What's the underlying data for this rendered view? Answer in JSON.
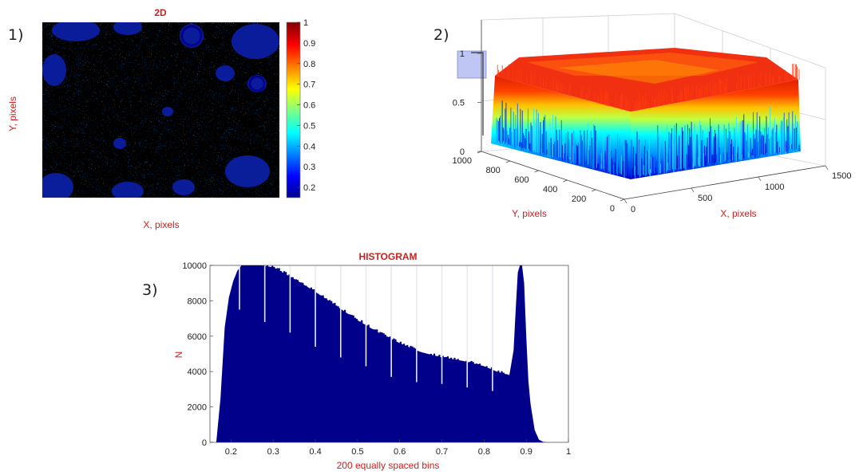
{
  "panels": {
    "p1": "1)",
    "p2": "2)",
    "p3": "3)"
  },
  "colors": {
    "navy": "#00008b",
    "label_red": "#cc1f1f"
  },
  "chart_data": [
    {
      "type": "heatmap",
      "title": "2D",
      "xlabel": "X, pixels",
      "ylabel": "Y, pixels",
      "colormap": "jet",
      "colorbar": {
        "range": [
          0.15,
          1.0
        ],
        "ticks": [
          "1",
          "0.9",
          "0.8",
          "0.7",
          "0.6",
          "0.5",
          "0.4",
          "0.3",
          "0.2"
        ]
      },
      "grid": false
    },
    {
      "type": "surface",
      "title": "",
      "xlabel": "X, pixels",
      "ylabel": "Y, pixels",
      "x_ticks": [
        "0",
        "500",
        "1000",
        "1500"
      ],
      "y_ticks": [
        "0",
        "200",
        "400",
        "600",
        "800",
        "1000"
      ],
      "z_ticks": [
        "0",
        "0.5",
        "1"
      ],
      "xlim": [
        0,
        1500
      ],
      "ylim": [
        0,
        1000
      ],
      "zlim": [
        0,
        1
      ],
      "colormap": "jet",
      "grid": true
    },
    {
      "type": "bar",
      "title": "HISTOGRAM",
      "xlabel": "200 equally spaced bins",
      "ylabel": "N",
      "xlim": [
        0.15,
        1.0
      ],
      "ylim": [
        0,
        10000
      ],
      "x_ticks": [
        "0.2",
        "0.3",
        "0.4",
        "0.5",
        "0.6",
        "0.7",
        "0.8",
        "0.9",
        "1"
      ],
      "y_ticks": [
        "0",
        "2000",
        "4000",
        "6000",
        "8000",
        "10000"
      ],
      "bar_color": "#00008b",
      "profile_x": [
        0.165,
        0.175,
        0.185,
        0.195,
        0.205,
        0.215,
        0.225,
        0.25,
        0.27,
        0.3,
        0.33,
        0.36,
        0.4,
        0.45,
        0.5,
        0.55,
        0.6,
        0.65,
        0.7,
        0.75,
        0.8,
        0.83,
        0.86,
        0.87,
        0.875,
        0.88,
        0.885,
        0.89,
        0.895,
        0.9,
        0.905,
        0.91,
        0.92,
        0.93,
        0.94,
        0.95
      ],
      "profile_y": [
        0,
        2500,
        6500,
        8200,
        9100,
        9700,
        10000,
        10000,
        10000,
        9900,
        9500,
        9100,
        8500,
        7700,
        6900,
        6200,
        5600,
        5100,
        4800,
        4600,
        4300,
        4000,
        3800,
        5200,
        7500,
        9600,
        10000,
        10000,
        9000,
        6000,
        3500,
        2200,
        700,
        150,
        30,
        0
      ],
      "gap_x": [
        0.22,
        0.28,
        0.34,
        0.4,
        0.46,
        0.52,
        0.58,
        0.64,
        0.7,
        0.76,
        0.82
      ],
      "gap_y": [
        7500,
        6800,
        6200,
        5400,
        4800,
        4300,
        3700,
        3400,
        3300,
        3100,
        2900
      ]
    }
  ]
}
